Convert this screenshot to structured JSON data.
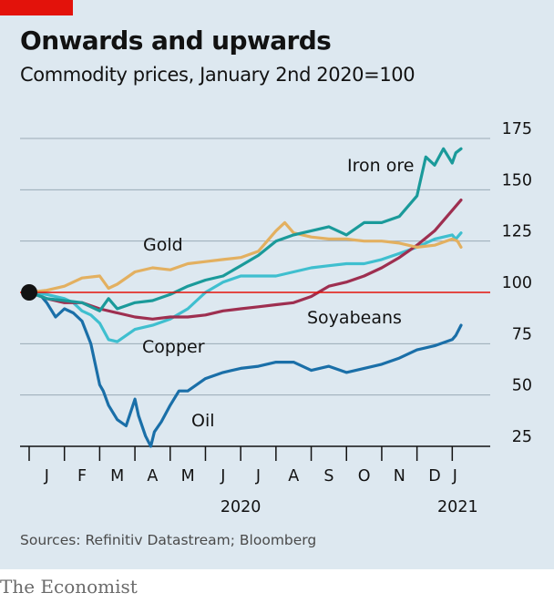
{
  "brand_tag_color": "#e3120b",
  "title": "Onwards and upwards",
  "subtitle": "Commodity prices, January 2nd 2020=100",
  "source": "Sources: Refinitiv Datastream; Bloomberg",
  "brand": "The Economist",
  "chart_data": {
    "type": "line",
    "title": "Onwards and upwards",
    "subtitle": "Commodity prices, January 2nd 2020=100",
    "ylim": [
      25,
      175
    ],
    "yticks": [
      25,
      50,
      75,
      100,
      125,
      150,
      175
    ],
    "ytick_labels": [
      "25",
      "50",
      "75",
      "100",
      "125",
      "150",
      "175"
    ],
    "grid": true,
    "baseline": 100,
    "baseline_color": "#e3120b",
    "x_month_labels": [
      "J",
      "F",
      "M",
      "A",
      "M",
      "J",
      "J",
      "A",
      "S",
      "O",
      "N",
      "D",
      "J"
    ],
    "x_year_labels": [
      "2020",
      "2021"
    ],
    "xlim": [
      0,
      12.35
    ],
    "start_marker": {
      "x": 0,
      "y": 100
    },
    "series": [
      {
        "name": "Oil",
        "color": "#1a6fa8",
        "x": [
          0,
          0.25,
          0.5,
          0.75,
          1.0,
          1.25,
          1.5,
          1.75,
          2.0,
          2.1,
          2.25,
          2.5,
          2.75,
          3.0,
          3.1,
          3.3,
          3.45,
          3.55,
          3.75,
          4.0,
          4.25,
          4.5,
          5.0,
          5.5,
          6.0,
          6.5,
          7.0,
          7.5,
          8.0,
          8.5,
          9.0,
          9.5,
          10.0,
          10.5,
          11.0,
          11.5,
          12.0,
          12.1,
          12.25
        ],
        "y": [
          100,
          100,
          95,
          88,
          92,
          90,
          86,
          75,
          55,
          52,
          45,
          38,
          35,
          48,
          40,
          30,
          25,
          32,
          37,
          45,
          52,
          52,
          58,
          61,
          63,
          64,
          66,
          66,
          62,
          64,
          61,
          63,
          65,
          68,
          72,
          74,
          77,
          79,
          84
        ]
      },
      {
        "name": "Copper",
        "color": "#3fbfcf",
        "x": [
          0,
          0.5,
          1.0,
          1.25,
          1.5,
          1.75,
          2.0,
          2.25,
          2.5,
          2.75,
          3.0,
          3.5,
          4.0,
          4.5,
          5.0,
          5.5,
          6.0,
          6.5,
          7.0,
          7.5,
          8.0,
          8.5,
          9.0,
          9.5,
          10.0,
          10.5,
          11.0,
          11.5,
          12.0,
          12.1,
          12.25
        ],
        "y": [
          100,
          99,
          97,
          95,
          91,
          89,
          85,
          77,
          76,
          79,
          82,
          84,
          87,
          92,
          100,
          105,
          108,
          108,
          108,
          110,
          112,
          113,
          114,
          114,
          116,
          119,
          122,
          126,
          128,
          126,
          129
        ]
      },
      {
        "name": "Soyabeans",
        "color": "#9e2f50",
        "x": [
          0,
          0.5,
          1.0,
          1.5,
          2.0,
          2.5,
          3.0,
          3.5,
          4.0,
          4.5,
          5.0,
          5.5,
          6.0,
          6.5,
          7.0,
          7.5,
          8.0,
          8.5,
          9.0,
          9.5,
          10.0,
          10.5,
          11.0,
          11.5,
          12.0,
          12.25
        ],
        "y": [
          100,
          97,
          95,
          95,
          92,
          90,
          88,
          87,
          88,
          88,
          89,
          91,
          92,
          93,
          94,
          95,
          98,
          103,
          105,
          108,
          112,
          117,
          123,
          130,
          140,
          145
        ]
      },
      {
        "name": "Gold",
        "color": "#e3b060",
        "x": [
          0,
          0.5,
          1.0,
          1.5,
          2.0,
          2.25,
          2.5,
          3.0,
          3.5,
          4.0,
          4.5,
          5.0,
          5.5,
          6.0,
          6.5,
          7.0,
          7.25,
          7.5,
          8.0,
          8.5,
          9.0,
          9.5,
          10.0,
          10.5,
          11.0,
          11.5,
          12.0,
          12.15,
          12.25
        ],
        "y": [
          100,
          101,
          103,
          107,
          108,
          102,
          104,
          110,
          112,
          111,
          114,
          115,
          116,
          117,
          120,
          130,
          134,
          129,
          127,
          126,
          126,
          125,
          125,
          124,
          122,
          123,
          126,
          125,
          122
        ]
      },
      {
        "name": "Iron ore",
        "color": "#1a9a9a",
        "x": [
          0,
          0.5,
          1.0,
          1.5,
          2.0,
          2.25,
          2.5,
          3.0,
          3.5,
          4.0,
          4.5,
          5.0,
          5.5,
          6.0,
          6.5,
          7.0,
          7.5,
          8.0,
          8.5,
          9.0,
          9.5,
          10.0,
          10.5,
          11.0,
          11.25,
          11.5,
          11.75,
          12.0,
          12.1,
          12.25
        ],
        "y": [
          100,
          97,
          96,
          95,
          91,
          97,
          92,
          95,
          96,
          99,
          103,
          106,
          108,
          113,
          118,
          125,
          128,
          130,
          132,
          128,
          134,
          134,
          137,
          147,
          166,
          162,
          170,
          163,
          168,
          170
        ]
      }
    ],
    "labels": [
      {
        "series": "Iron ore",
        "text": "Iron ore"
      },
      {
        "series": "Gold",
        "text": "Gold"
      },
      {
        "series": "Soyabeans",
        "text": "Soyabeans"
      },
      {
        "series": "Copper",
        "text": "Copper"
      },
      {
        "series": "Oil",
        "text": "Oil"
      }
    ]
  }
}
